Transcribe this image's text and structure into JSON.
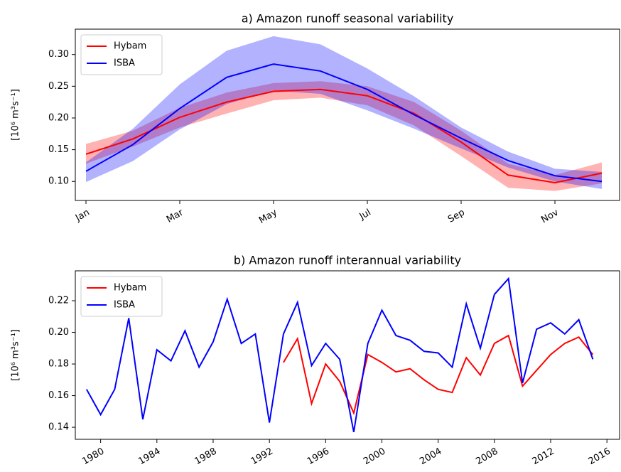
{
  "chart_data": [
    {
      "type": "line",
      "title": "a) Amazon runoff seasonal variability",
      "ylabel": "[10⁶ m³s⁻¹]",
      "categories": [
        "Jan",
        null,
        "Mar",
        null,
        "May",
        null,
        "Jul",
        null,
        "Sep",
        null,
        "Nov",
        null
      ],
      "ylim": [
        0.07,
        0.34
      ],
      "yticks": [
        {
          "value": 0.1,
          "label": "0.10"
        },
        0.15,
        {
          "value": 0.2,
          "label": "0.20"
        },
        0.25,
        {
          "value": 0.3,
          "label": "0.30"
        }
      ],
      "legend": "upper left",
      "series": [
        {
          "name": "Hybam",
          "color": "#ff0000",
          "values": [
            0.143,
            0.167,
            0.201,
            0.225,
            0.242,
            0.245,
            0.235,
            0.207,
            0.162,
            0.11,
            0.098,
            0.113
          ],
          "lower": [
            0.128,
            0.155,
            0.185,
            0.207,
            0.228,
            0.232,
            0.22,
            0.188,
            0.14,
            0.09,
            0.085,
            0.097
          ],
          "upper": [
            0.159,
            0.18,
            0.216,
            0.24,
            0.255,
            0.258,
            0.25,
            0.225,
            0.18,
            0.128,
            0.11,
            0.13
          ]
        },
        {
          "name": "ISBA",
          "color": "#0000ff",
          "values": [
            0.116,
            0.158,
            0.215,
            0.264,
            0.285,
            0.274,
            0.245,
            0.205,
            0.168,
            0.133,
            0.109,
            0.1
          ],
          "lower": [
            0.099,
            0.132,
            0.182,
            0.222,
            0.243,
            0.238,
            0.212,
            0.183,
            0.152,
            0.122,
            0.1,
            0.088
          ],
          "upper": [
            0.13,
            0.183,
            0.253,
            0.306,
            0.329,
            0.316,
            0.278,
            0.234,
            0.185,
            0.147,
            0.12,
            0.115
          ]
        }
      ]
    },
    {
      "type": "line",
      "title": "b) Amazon runoff interannual variability",
      "ylabel": "[10⁶ m³s⁻¹]",
      "x": [
        1979,
        1980,
        1981,
        1982,
        1983,
        1984,
        1985,
        1986,
        1987,
        1988,
        1989,
        1990,
        1991,
        1992,
        1993,
        1994,
        1995,
        1996,
        1997,
        1998,
        1999,
        2000,
        2001,
        2002,
        2003,
        2004,
        2005,
        2006,
        2007,
        2008,
        2009,
        2010,
        2011,
        2012,
        2013,
        2014,
        2015
      ],
      "xlim": [
        1978.2,
        2016.9
      ],
      "xticks": [
        1980,
        1984,
        1988,
        1992,
        1996,
        2000,
        2004,
        2008,
        2012,
        2016
      ],
      "ylim": [
        0.1324,
        0.2389
      ],
      "yticks": [
        0.14,
        0.16,
        0.18,
        {
          "value": 0.2,
          "label": "0.20"
        },
        0.22
      ],
      "legend": "upper left",
      "series": [
        {
          "name": "Hybam",
          "color": "#ff0000",
          "values": [
            null,
            null,
            null,
            null,
            null,
            null,
            null,
            null,
            null,
            null,
            null,
            null,
            null,
            null,
            0.181,
            0.196,
            0.155,
            0.18,
            0.169,
            0.149,
            0.186,
            0.181,
            0.175,
            0.177,
            0.17,
            0.164,
            0.162,
            0.184,
            0.173,
            0.193,
            0.198,
            0.166,
            0.176,
            0.186,
            0.193,
            0.197,
            0.186
          ]
        },
        {
          "name": "ISBA",
          "color": "#0000ff",
          "values": [
            0.164,
            0.148,
            0.164,
            0.209,
            0.145,
            0.189,
            0.182,
            0.201,
            0.178,
            0.194,
            0.221,
            0.193,
            0.199,
            0.143,
            0.199,
            0.219,
            0.179,
            0.193,
            0.183,
            0.137,
            0.193,
            0.214,
            0.198,
            0.195,
            0.188,
            0.187,
            0.178,
            0.218,
            0.19,
            0.224,
            0.234,
            0.168,
            0.202,
            0.206,
            0.199,
            0.208,
            0.183
          ]
        }
      ]
    }
  ]
}
